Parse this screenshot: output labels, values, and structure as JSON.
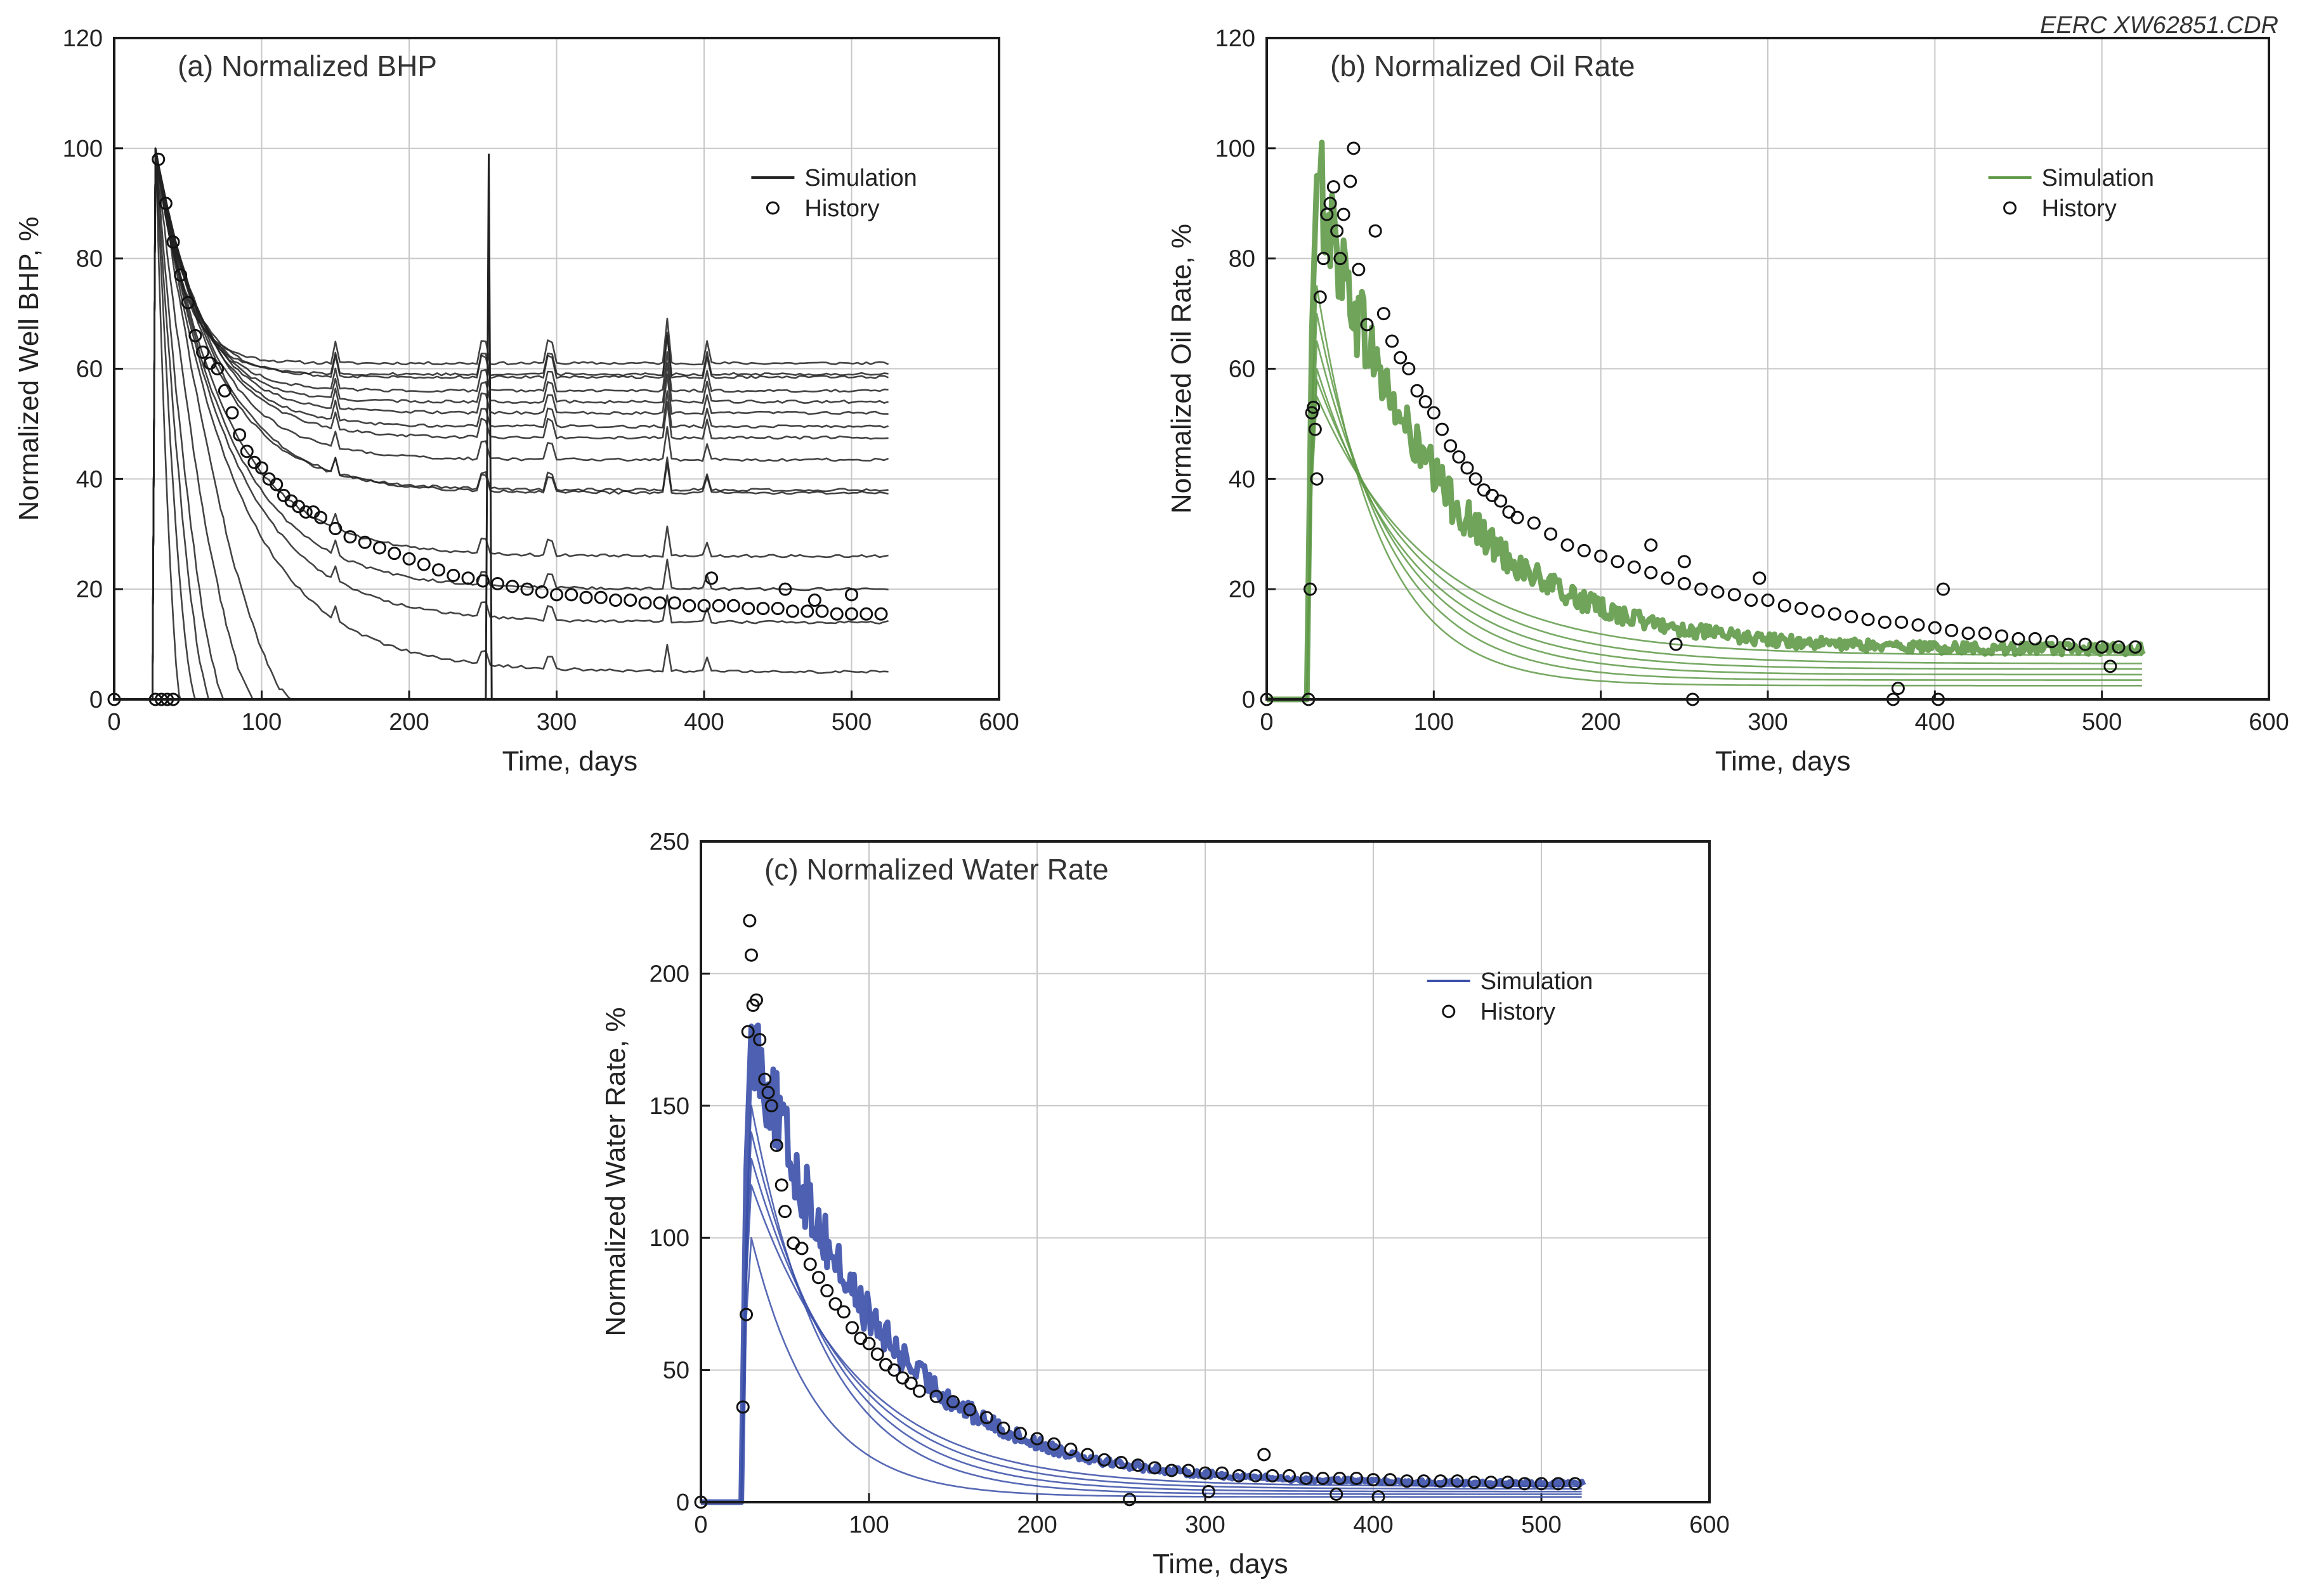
{
  "figure_code": "EERC XW62851.CDR",
  "colors": {
    "bhp_sim": "#222222",
    "oil_sim": "#5f9a48",
    "water_sim": "#3a4fa8",
    "history_marker": "#111111"
  },
  "chart_data": [
    {
      "type": "line",
      "title": "(a) Normalized BHP",
      "xlabel": "Time, days",
      "ylabel": "Normalized Well BHP, %",
      "xlim": [
        0,
        600
      ],
      "ylim": [
        0,
        120
      ],
      "xticks": [
        0,
        100,
        200,
        300,
        400,
        500,
        600
      ],
      "yticks": [
        0,
        20,
        40,
        60,
        80,
        100,
        120
      ],
      "grid": true,
      "legend_position": "top-right",
      "legend": {
        "simulation": "Simulation",
        "history": "History"
      },
      "series": [
        {
          "name": "Simulation well 1",
          "kind": "plateau",
          "final": 61
        },
        {
          "name": "Simulation well 2",
          "kind": "plateau",
          "final": 59
        },
        {
          "name": "Simulation well 3",
          "kind": "plateau",
          "final": 58.5
        },
        {
          "name": "Simulation well 4",
          "kind": "plateau",
          "final": 56
        },
        {
          "name": "Simulation well 5",
          "kind": "plateau",
          "final": 54
        },
        {
          "name": "Simulation well 6",
          "kind": "plateau",
          "final": 52
        },
        {
          "name": "Simulation well 7",
          "kind": "plateau",
          "final": 49.5
        },
        {
          "name": "Simulation well 8",
          "kind": "plateau",
          "final": 47.5
        },
        {
          "name": "Simulation well 9",
          "kind": "plateau",
          "final": 43.5
        },
        {
          "name": "Simulation well 10",
          "kind": "plateau",
          "final": 38
        },
        {
          "name": "Simulation well 11",
          "kind": "plateau",
          "final": 37.5
        },
        {
          "name": "Simulation well 12",
          "kind": "plateau",
          "final": 26
        },
        {
          "name": "Simulation well 13",
          "kind": "plateau",
          "final": 20
        },
        {
          "name": "Simulation well 14",
          "kind": "plateau",
          "final": 14
        },
        {
          "name": "Simulation well 15",
          "kind": "plateau",
          "final": 5
        },
        {
          "name": "Simulation well 16",
          "kind": "shutin",
          "end_day": 45
        },
        {
          "name": "Simulation well 17",
          "kind": "shutin",
          "end_day": 55
        },
        {
          "name": "Simulation well 18",
          "kind": "shutin",
          "end_day": 65
        },
        {
          "name": "Simulation well 19",
          "kind": "shutin",
          "end_day": 75
        },
        {
          "name": "Simulation well 20",
          "kind": "shutin",
          "end_day": 95
        },
        {
          "name": "Simulation well 21",
          "kind": "shutin",
          "end_day": 120
        }
      ],
      "history": [
        {
          "x": 0,
          "y": 0
        },
        {
          "x": 28,
          "y": 0
        },
        {
          "x": 32,
          "y": 0
        },
        {
          "x": 36,
          "y": 0
        },
        {
          "x": 40,
          "y": 0
        },
        {
          "x": 30,
          "y": 98
        },
        {
          "x": 35,
          "y": 90
        },
        {
          "x": 40,
          "y": 83
        },
        {
          "x": 45,
          "y": 77
        },
        {
          "x": 50,
          "y": 72
        },
        {
          "x": 55,
          "y": 66
        },
        {
          "x": 60,
          "y": 63
        },
        {
          "x": 65,
          "y": 61
        },
        {
          "x": 70,
          "y": 60
        },
        {
          "x": 75,
          "y": 56
        },
        {
          "x": 80,
          "y": 52
        },
        {
          "x": 85,
          "y": 48
        },
        {
          "x": 90,
          "y": 45
        },
        {
          "x": 95,
          "y": 43
        },
        {
          "x": 100,
          "y": 42
        },
        {
          "x": 105,
          "y": 40
        },
        {
          "x": 110,
          "y": 39
        },
        {
          "x": 115,
          "y": 37
        },
        {
          "x": 120,
          "y": 36
        },
        {
          "x": 125,
          "y": 35
        },
        {
          "x": 130,
          "y": 34
        },
        {
          "x": 135,
          "y": 34
        },
        {
          "x": 140,
          "y": 33
        },
        {
          "x": 150,
          "y": 31
        },
        {
          "x": 160,
          "y": 29.5
        },
        {
          "x": 170,
          "y": 28.5
        },
        {
          "x": 180,
          "y": 27.5
        },
        {
          "x": 190,
          "y": 26.5
        },
        {
          "x": 200,
          "y": 25.5
        },
        {
          "x": 210,
          "y": 24.5
        },
        {
          "x": 220,
          "y": 23.5
        },
        {
          "x": 230,
          "y": 22.5
        },
        {
          "x": 240,
          "y": 22
        },
        {
          "x": 250,
          "y": 21.5
        },
        {
          "x": 260,
          "y": 21
        },
        {
          "x": 270,
          "y": 20.5
        },
        {
          "x": 280,
          "y": 20
        },
        {
          "x": 290,
          "y": 19.5
        },
        {
          "x": 300,
          "y": 19
        },
        {
          "x": 310,
          "y": 19
        },
        {
          "x": 320,
          "y": 18.5
        },
        {
          "x": 330,
          "y": 18.5
        },
        {
          "x": 340,
          "y": 18
        },
        {
          "x": 350,
          "y": 18
        },
        {
          "x": 360,
          "y": 17.5
        },
        {
          "x": 370,
          "y": 17.5
        },
        {
          "x": 380,
          "y": 17.5
        },
        {
          "x": 390,
          "y": 17
        },
        {
          "x": 400,
          "y": 17
        },
        {
          "x": 410,
          "y": 17
        },
        {
          "x": 420,
          "y": 17
        },
        {
          "x": 430,
          "y": 16.5
        },
        {
          "x": 440,
          "y": 16.5
        },
        {
          "x": 450,
          "y": 16.5
        },
        {
          "x": 460,
          "y": 16
        },
        {
          "x": 470,
          "y": 16
        },
        {
          "x": 480,
          "y": 16
        },
        {
          "x": 490,
          "y": 15.5
        },
        {
          "x": 500,
          "y": 15.5
        },
        {
          "x": 510,
          "y": 15.5
        },
        {
          "x": 520,
          "y": 15.5
        },
        {
          "x": 405,
          "y": 22
        },
        {
          "x": 455,
          "y": 20
        },
        {
          "x": 475,
          "y": 18
        },
        {
          "x": 500,
          "y": 19
        }
      ]
    },
    {
      "type": "line",
      "title": "(b) Normalized Oil Rate",
      "xlabel": "Time, days",
      "ylabel": "Normalized Oil Rate, %",
      "xlim": [
        0,
        600
      ],
      "ylim": [
        0,
        120
      ],
      "xticks": [
        0,
        100,
        200,
        300,
        400,
        500,
        600
      ],
      "yticks": [
        0,
        20,
        40,
        60,
        80,
        100,
        120
      ],
      "grid": true,
      "legend_position": "top-right",
      "legend": {
        "simulation": "Simulation",
        "history": "History"
      },
      "series": [
        {
          "name": "Simulation band",
          "kind": "band",
          "peak": 95,
          "final": 9
        },
        {
          "name": "Simulation well low 1",
          "kind": "decline",
          "peak": 75,
          "final": 2.5
        },
        {
          "name": "Simulation well low 2",
          "kind": "decline",
          "peak": 70,
          "final": 3.5
        },
        {
          "name": "Simulation well low 3",
          "kind": "decline",
          "peak": 65,
          "final": 4.5
        },
        {
          "name": "Simulation well low 4",
          "kind": "decline",
          "peak": 60,
          "final": 5.5
        },
        {
          "name": "Simulation well low 5",
          "kind": "decline",
          "peak": 58,
          "final": 6.5
        },
        {
          "name": "Simulation well low 6",
          "kind": "decline",
          "peak": 55,
          "final": 8
        }
      ],
      "history": [
        {
          "x": 0,
          "y": 0
        },
        {
          "x": 25,
          "y": 0
        },
        {
          "x": 26,
          "y": 20
        },
        {
          "x": 27,
          "y": 52
        },
        {
          "x": 28,
          "y": 53
        },
        {
          "x": 29,
          "y": 49
        },
        {
          "x": 30,
          "y": 40
        },
        {
          "x": 32,
          "y": 73
        },
        {
          "x": 34,
          "y": 80
        },
        {
          "x": 36,
          "y": 88
        },
        {
          "x": 38,
          "y": 90
        },
        {
          "x": 40,
          "y": 93
        },
        {
          "x": 42,
          "y": 85
        },
        {
          "x": 44,
          "y": 80
        },
        {
          "x": 46,
          "y": 88
        },
        {
          "x": 50,
          "y": 94
        },
        {
          "x": 52,
          "y": 100
        },
        {
          "x": 55,
          "y": 78
        },
        {
          "x": 60,
          "y": 68
        },
        {
          "x": 65,
          "y": 85
        },
        {
          "x": 70,
          "y": 70
        },
        {
          "x": 75,
          "y": 65
        },
        {
          "x": 80,
          "y": 62
        },
        {
          "x": 85,
          "y": 60
        },
        {
          "x": 90,
          "y": 56
        },
        {
          "x": 95,
          "y": 54
        },
        {
          "x": 100,
          "y": 52
        },
        {
          "x": 105,
          "y": 49
        },
        {
          "x": 110,
          "y": 46
        },
        {
          "x": 115,
          "y": 44
        },
        {
          "x": 120,
          "y": 42
        },
        {
          "x": 125,
          "y": 40
        },
        {
          "x": 130,
          "y": 38
        },
        {
          "x": 135,
          "y": 37
        },
        {
          "x": 140,
          "y": 36
        },
        {
          "x": 145,
          "y": 34
        },
        {
          "x": 150,
          "y": 33
        },
        {
          "x": 160,
          "y": 32
        },
        {
          "x": 170,
          "y": 30
        },
        {
          "x": 180,
          "y": 28
        },
        {
          "x": 190,
          "y": 27
        },
        {
          "x": 200,
          "y": 26
        },
        {
          "x": 210,
          "y": 25
        },
        {
          "x": 220,
          "y": 24
        },
        {
          "x": 230,
          "y": 23
        },
        {
          "x": 240,
          "y": 22
        },
        {
          "x": 250,
          "y": 21
        },
        {
          "x": 255,
          "y": 0
        },
        {
          "x": 260,
          "y": 20
        },
        {
          "x": 270,
          "y": 19.5
        },
        {
          "x": 280,
          "y": 19
        },
        {
          "x": 290,
          "y": 18
        },
        {
          "x": 300,
          "y": 18
        },
        {
          "x": 310,
          "y": 17
        },
        {
          "x": 320,
          "y": 16.5
        },
        {
          "x": 330,
          "y": 16
        },
        {
          "x": 340,
          "y": 15.5
        },
        {
          "x": 350,
          "y": 15
        },
        {
          "x": 360,
          "y": 14.5
        },
        {
          "x": 370,
          "y": 14
        },
        {
          "x": 375,
          "y": 0
        },
        {
          "x": 378,
          "y": 2
        },
        {
          "x": 380,
          "y": 14
        },
        {
          "x": 390,
          "y": 13.5
        },
        {
          "x": 400,
          "y": 13
        },
        {
          "x": 402,
          "y": 0
        },
        {
          "x": 405,
          "y": 20
        },
        {
          "x": 410,
          "y": 12.5
        },
        {
          "x": 420,
          "y": 12
        },
        {
          "x": 430,
          "y": 12
        },
        {
          "x": 440,
          "y": 11.5
        },
        {
          "x": 450,
          "y": 11
        },
        {
          "x": 460,
          "y": 11
        },
        {
          "x": 470,
          "y": 10.5
        },
        {
          "x": 480,
          "y": 10
        },
        {
          "x": 490,
          "y": 10
        },
        {
          "x": 500,
          "y": 9.5
        },
        {
          "x": 510,
          "y": 9.5
        },
        {
          "x": 520,
          "y": 9.5
        },
        {
          "x": 505,
          "y": 6
        },
        {
          "x": 230,
          "y": 28
        },
        {
          "x": 245,
          "y": 10
        },
        {
          "x": 250,
          "y": 25
        },
        {
          "x": 295,
          "y": 22
        }
      ]
    },
    {
      "type": "line",
      "title": "(c) Normalized Water Rate",
      "xlabel": "Time, days",
      "ylabel": "Normalized Water Rate, %",
      "xlim": [
        0,
        600
      ],
      "ylim": [
        0,
        250
      ],
      "xticks": [
        0,
        100,
        200,
        300,
        400,
        500,
        600
      ],
      "yticks": [
        0,
        50,
        100,
        150,
        200,
        250
      ],
      "grid": true,
      "legend_position": "top-right",
      "legend": {
        "simulation": "Simulation",
        "history": "History"
      },
      "series": [
        {
          "name": "Simulation band",
          "kind": "band",
          "peak": 180,
          "final": 7
        },
        {
          "name": "Simulation well low 1",
          "kind": "decline",
          "peak": 100,
          "final": 2
        },
        {
          "name": "Simulation well low 2",
          "kind": "decline",
          "peak": 150,
          "final": 3
        },
        {
          "name": "Simulation well low 3",
          "kind": "decline",
          "peak": 140,
          "final": 4
        },
        {
          "name": "Simulation well low 4",
          "kind": "decline",
          "peak": 130,
          "final": 5
        },
        {
          "name": "Simulation well low 5",
          "kind": "decline",
          "peak": 120,
          "final": 6
        }
      ],
      "history": [
        {
          "x": 0,
          "y": 0
        },
        {
          "x": 25,
          "y": 36
        },
        {
          "x": 27,
          "y": 71
        },
        {
          "x": 28,
          "y": 178
        },
        {
          "x": 29,
          "y": 220
        },
        {
          "x": 30,
          "y": 207
        },
        {
          "x": 31,
          "y": 188
        },
        {
          "x": 33,
          "y": 190
        },
        {
          "x": 35,
          "y": 175
        },
        {
          "x": 38,
          "y": 160
        },
        {
          "x": 40,
          "y": 155
        },
        {
          "x": 42,
          "y": 150
        },
        {
          "x": 45,
          "y": 135
        },
        {
          "x": 48,
          "y": 120
        },
        {
          "x": 50,
          "y": 110
        },
        {
          "x": 55,
          "y": 98
        },
        {
          "x": 60,
          "y": 96
        },
        {
          "x": 65,
          "y": 90
        },
        {
          "x": 70,
          "y": 85
        },
        {
          "x": 75,
          "y": 80
        },
        {
          "x": 80,
          "y": 75
        },
        {
          "x": 85,
          "y": 72
        },
        {
          "x": 90,
          "y": 66
        },
        {
          "x": 95,
          "y": 62
        },
        {
          "x": 100,
          "y": 60
        },
        {
          "x": 105,
          "y": 56
        },
        {
          "x": 110,
          "y": 52
        },
        {
          "x": 115,
          "y": 50
        },
        {
          "x": 120,
          "y": 47
        },
        {
          "x": 125,
          "y": 45
        },
        {
          "x": 130,
          "y": 42
        },
        {
          "x": 140,
          "y": 40
        },
        {
          "x": 150,
          "y": 38
        },
        {
          "x": 160,
          "y": 35
        },
        {
          "x": 170,
          "y": 32
        },
        {
          "x": 180,
          "y": 28
        },
        {
          "x": 190,
          "y": 26
        },
        {
          "x": 200,
          "y": 24
        },
        {
          "x": 210,
          "y": 22
        },
        {
          "x": 220,
          "y": 20
        },
        {
          "x": 230,
          "y": 18
        },
        {
          "x": 240,
          "y": 16
        },
        {
          "x": 250,
          "y": 15
        },
        {
          "x": 255,
          "y": 1
        },
        {
          "x": 260,
          "y": 14
        },
        {
          "x": 270,
          "y": 13
        },
        {
          "x": 280,
          "y": 12
        },
        {
          "x": 290,
          "y": 12
        },
        {
          "x": 300,
          "y": 11
        },
        {
          "x": 302,
          "y": 4
        },
        {
          "x": 310,
          "y": 11
        },
        {
          "x": 320,
          "y": 10
        },
        {
          "x": 330,
          "y": 10
        },
        {
          "x": 340,
          "y": 10
        },
        {
          "x": 350,
          "y": 10
        },
        {
          "x": 360,
          "y": 9
        },
        {
          "x": 370,
          "y": 9
        },
        {
          "x": 378,
          "y": 3
        },
        {
          "x": 380,
          "y": 9
        },
        {
          "x": 390,
          "y": 9
        },
        {
          "x": 400,
          "y": 8.5
        },
        {
          "x": 403,
          "y": 2
        },
        {
          "x": 410,
          "y": 8.5
        },
        {
          "x": 420,
          "y": 8
        },
        {
          "x": 430,
          "y": 8
        },
        {
          "x": 440,
          "y": 8
        },
        {
          "x": 450,
          "y": 8
        },
        {
          "x": 460,
          "y": 7.5
        },
        {
          "x": 470,
          "y": 7.5
        },
        {
          "x": 480,
          "y": 7.5
        },
        {
          "x": 490,
          "y": 7
        },
        {
          "x": 500,
          "y": 7
        },
        {
          "x": 510,
          "y": 7
        },
        {
          "x": 520,
          "y": 7
        },
        {
          "x": 335,
          "y": 18
        }
      ]
    }
  ]
}
